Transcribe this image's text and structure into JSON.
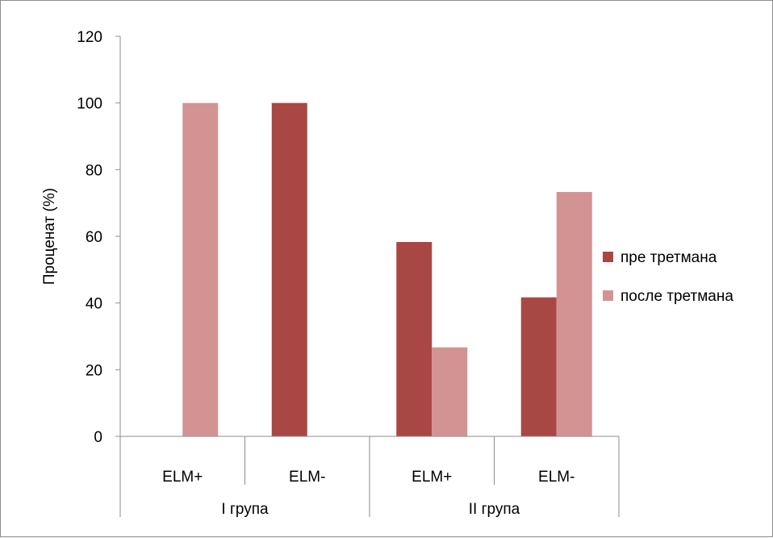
{
  "chart_data": {
    "type": "bar",
    "groups": [
      {
        "label": "I група",
        "categories": [
          "ELM+",
          "ELM-"
        ]
      },
      {
        "label": "II група",
        "categories": [
          "ELM+",
          "ELM-"
        ]
      }
    ],
    "categories": [
      "ELM+",
      "ELM-",
      "ELM+",
      "ELM-"
    ],
    "series": [
      {
        "name": "пре третмана",
        "values": [
          0,
          100,
          58.3,
          41.7
        ],
        "color": "#a94745"
      },
      {
        "name": "после третмана",
        "values": [
          100,
          0,
          26.7,
          73.3
        ],
        "color": "#d39393"
      }
    ],
    "ylabel": "Проценат (%)",
    "ylim": [
      0,
      120
    ],
    "yticks": [
      0,
      20,
      40,
      60,
      80,
      100,
      120
    ],
    "grid": false,
    "legend_position": "right"
  }
}
